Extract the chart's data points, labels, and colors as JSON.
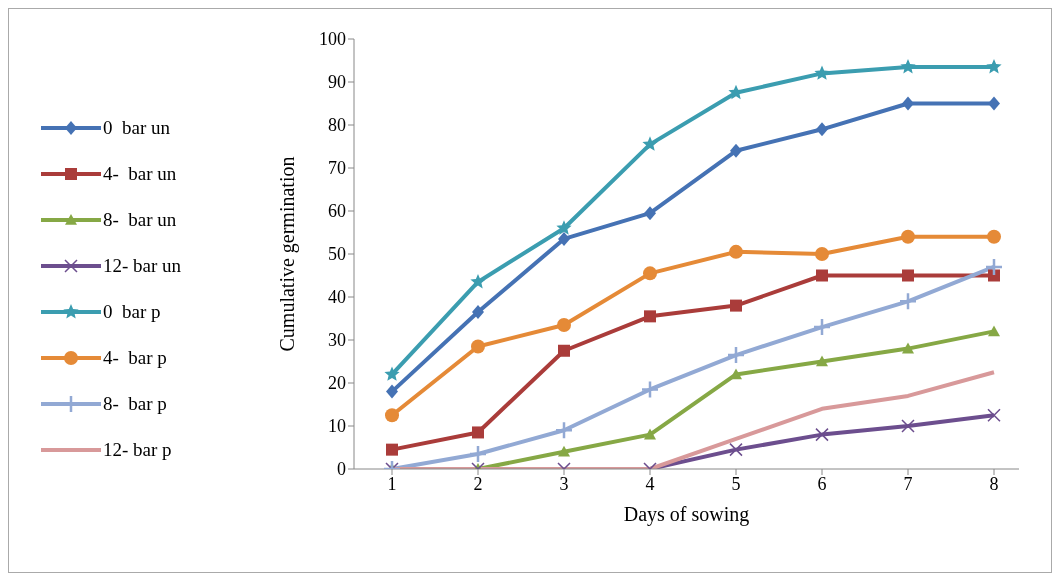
{
  "chart_data": {
    "type": "line",
    "xlabel": "Days of sowing",
    "ylabel": "Cumulative  germination",
    "categories": [
      "1",
      "2",
      "3",
      "4",
      "5",
      "6",
      "7",
      "8"
    ],
    "ylim": [
      0,
      100
    ],
    "yticks": [
      0,
      10,
      20,
      30,
      40,
      50,
      60,
      70,
      80,
      90,
      100
    ],
    "grid": false,
    "legend": "left",
    "line_style": "solid",
    "series": [
      {
        "name": "0  bar un",
        "color": "#4572b4",
        "marker": "diamond",
        "values": [
          18,
          36.5,
          53.5,
          59.5,
          74,
          79,
          85,
          85
        ]
      },
      {
        "name": "4-  bar un",
        "color": "#aa3c3a",
        "marker": "square",
        "values": [
          4.5,
          8.5,
          27.5,
          35.5,
          38,
          45,
          45,
          45
        ]
      },
      {
        "name": "8-  bar un",
        "color": "#86a845",
        "marker": "triangle",
        "values": [
          0,
          0,
          4,
          8,
          22,
          25,
          28,
          32
        ]
      },
      {
        "name": "12- bar un",
        "color": "#6c4e8e",
        "marker": "cross",
        "values": [
          0,
          0,
          0,
          0,
          4.5,
          8,
          10,
          12.5
        ]
      },
      {
        "name": "0  bar p",
        "color": "#3b9db0",
        "marker": "star",
        "values": [
          22,
          43.5,
          56,
          75.5,
          87.5,
          92,
          93.5,
          93.5
        ]
      },
      {
        "name": "4-  bar p",
        "color": "#e58a37",
        "marker": "circle",
        "values": [
          12.5,
          28.5,
          33.5,
          45.5,
          50.5,
          50,
          54,
          54
        ]
      },
      {
        "name": "8-  bar p",
        "color": "#92a9d4",
        "marker": "plus",
        "values": [
          0,
          3.5,
          9,
          18.5,
          26.5,
          33,
          39,
          47
        ]
      },
      {
        "name": "12- bar p",
        "color": "#d8999a",
        "marker": "none",
        "values": [
          0,
          0,
          0,
          0,
          7,
          14,
          17,
          22.5
        ]
      }
    ]
  }
}
